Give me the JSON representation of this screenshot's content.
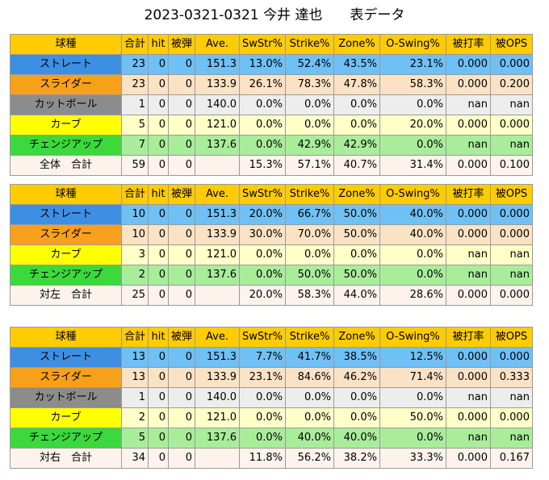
{
  "title": "2023-0321-0321 今井 達也　　表データ",
  "headers": [
    "球種",
    "合計",
    "hit",
    "被弾",
    "Ave.",
    "SwStr%",
    "Strike%",
    "Zone%",
    "O-Swing%",
    "被打率",
    "被OPS"
  ],
  "tables": [
    {
      "rows": [
        {
          "kind": "straight",
          "cells": [
            "ストレート",
            "23",
            "0",
            "0",
            "151.3",
            "13.0%",
            "52.4%",
            "43.5%",
            "23.1%",
            "0.000",
            "0.000"
          ]
        },
        {
          "kind": "slider",
          "cells": [
            "スライダー",
            "23",
            "0",
            "0",
            "133.9",
            "26.1%",
            "78.3%",
            "47.8%",
            "58.3%",
            "0.000",
            "0.200"
          ]
        },
        {
          "kind": "cut",
          "cells": [
            "カットボール",
            "1",
            "0",
            "0",
            "140.0",
            "0.0%",
            "0.0%",
            "0.0%",
            "0.0%",
            "nan",
            "nan"
          ]
        },
        {
          "kind": "curve",
          "cells": [
            "カーブ",
            "5",
            "0",
            "0",
            "121.0",
            "0.0%",
            "0.0%",
            "0.0%",
            "20.0%",
            "0.000",
            "0.000"
          ]
        },
        {
          "kind": "change",
          "cells": [
            "チェンジアップ",
            "7",
            "0",
            "0",
            "137.6",
            "0.0%",
            "42.9%",
            "42.9%",
            "0.0%",
            "nan",
            "nan"
          ]
        },
        {
          "kind": "total",
          "cells": [
            "全体　合計",
            "59",
            "0",
            "0",
            "",
            "15.3%",
            "57.1%",
            "40.7%",
            "31.4%",
            "0.000",
            "0.100"
          ]
        }
      ]
    },
    {
      "rows": [
        {
          "kind": "straight",
          "cells": [
            "ストレート",
            "10",
            "0",
            "0",
            "151.3",
            "20.0%",
            "66.7%",
            "50.0%",
            "40.0%",
            "0.000",
            "0.000"
          ]
        },
        {
          "kind": "slider",
          "cells": [
            "スライダー",
            "10",
            "0",
            "0",
            "133.9",
            "30.0%",
            "70.0%",
            "50.0%",
            "40.0%",
            "0.000",
            "0.000"
          ]
        },
        {
          "kind": "curve",
          "cells": [
            "カーブ",
            "3",
            "0",
            "0",
            "121.0",
            "0.0%",
            "0.0%",
            "0.0%",
            "0.0%",
            "nan",
            "nan"
          ]
        },
        {
          "kind": "change",
          "cells": [
            "チェンジアップ",
            "2",
            "0",
            "0",
            "137.6",
            "0.0%",
            "50.0%",
            "50.0%",
            "0.0%",
            "nan",
            "nan"
          ]
        },
        {
          "kind": "total",
          "cells": [
            "対左　合計",
            "25",
            "0",
            "0",
            "",
            "20.0%",
            "58.3%",
            "44.0%",
            "28.6%",
            "0.000",
            "0.000"
          ]
        }
      ]
    },
    {
      "rows": [
        {
          "kind": "straight",
          "cells": [
            "ストレート",
            "13",
            "0",
            "0",
            "151.3",
            "7.7%",
            "41.7%",
            "38.5%",
            "12.5%",
            "0.000",
            "0.000"
          ]
        },
        {
          "kind": "slider",
          "cells": [
            "スライダー",
            "13",
            "0",
            "0",
            "133.9",
            "23.1%",
            "84.6%",
            "46.2%",
            "71.4%",
            "0.000",
            "0.333"
          ]
        },
        {
          "kind": "cut",
          "cells": [
            "カットボール",
            "1",
            "0",
            "0",
            "140.0",
            "0.0%",
            "0.0%",
            "0.0%",
            "0.0%",
            "nan",
            "nan"
          ]
        },
        {
          "kind": "curve",
          "cells": [
            "カーブ",
            "2",
            "0",
            "0",
            "121.0",
            "0.0%",
            "0.0%",
            "0.0%",
            "50.0%",
            "0.000",
            "0.000"
          ]
        },
        {
          "kind": "change",
          "cells": [
            "チェンジアップ",
            "5",
            "0",
            "0",
            "137.6",
            "0.0%",
            "40.0%",
            "40.0%",
            "0.0%",
            "nan",
            "nan"
          ]
        },
        {
          "kind": "total",
          "cells": [
            "対右　合計",
            "34",
            "0",
            "0",
            "",
            "11.8%",
            "56.2%",
            "38.2%",
            "33.3%",
            "0.000",
            "0.167"
          ]
        }
      ]
    }
  ]
}
